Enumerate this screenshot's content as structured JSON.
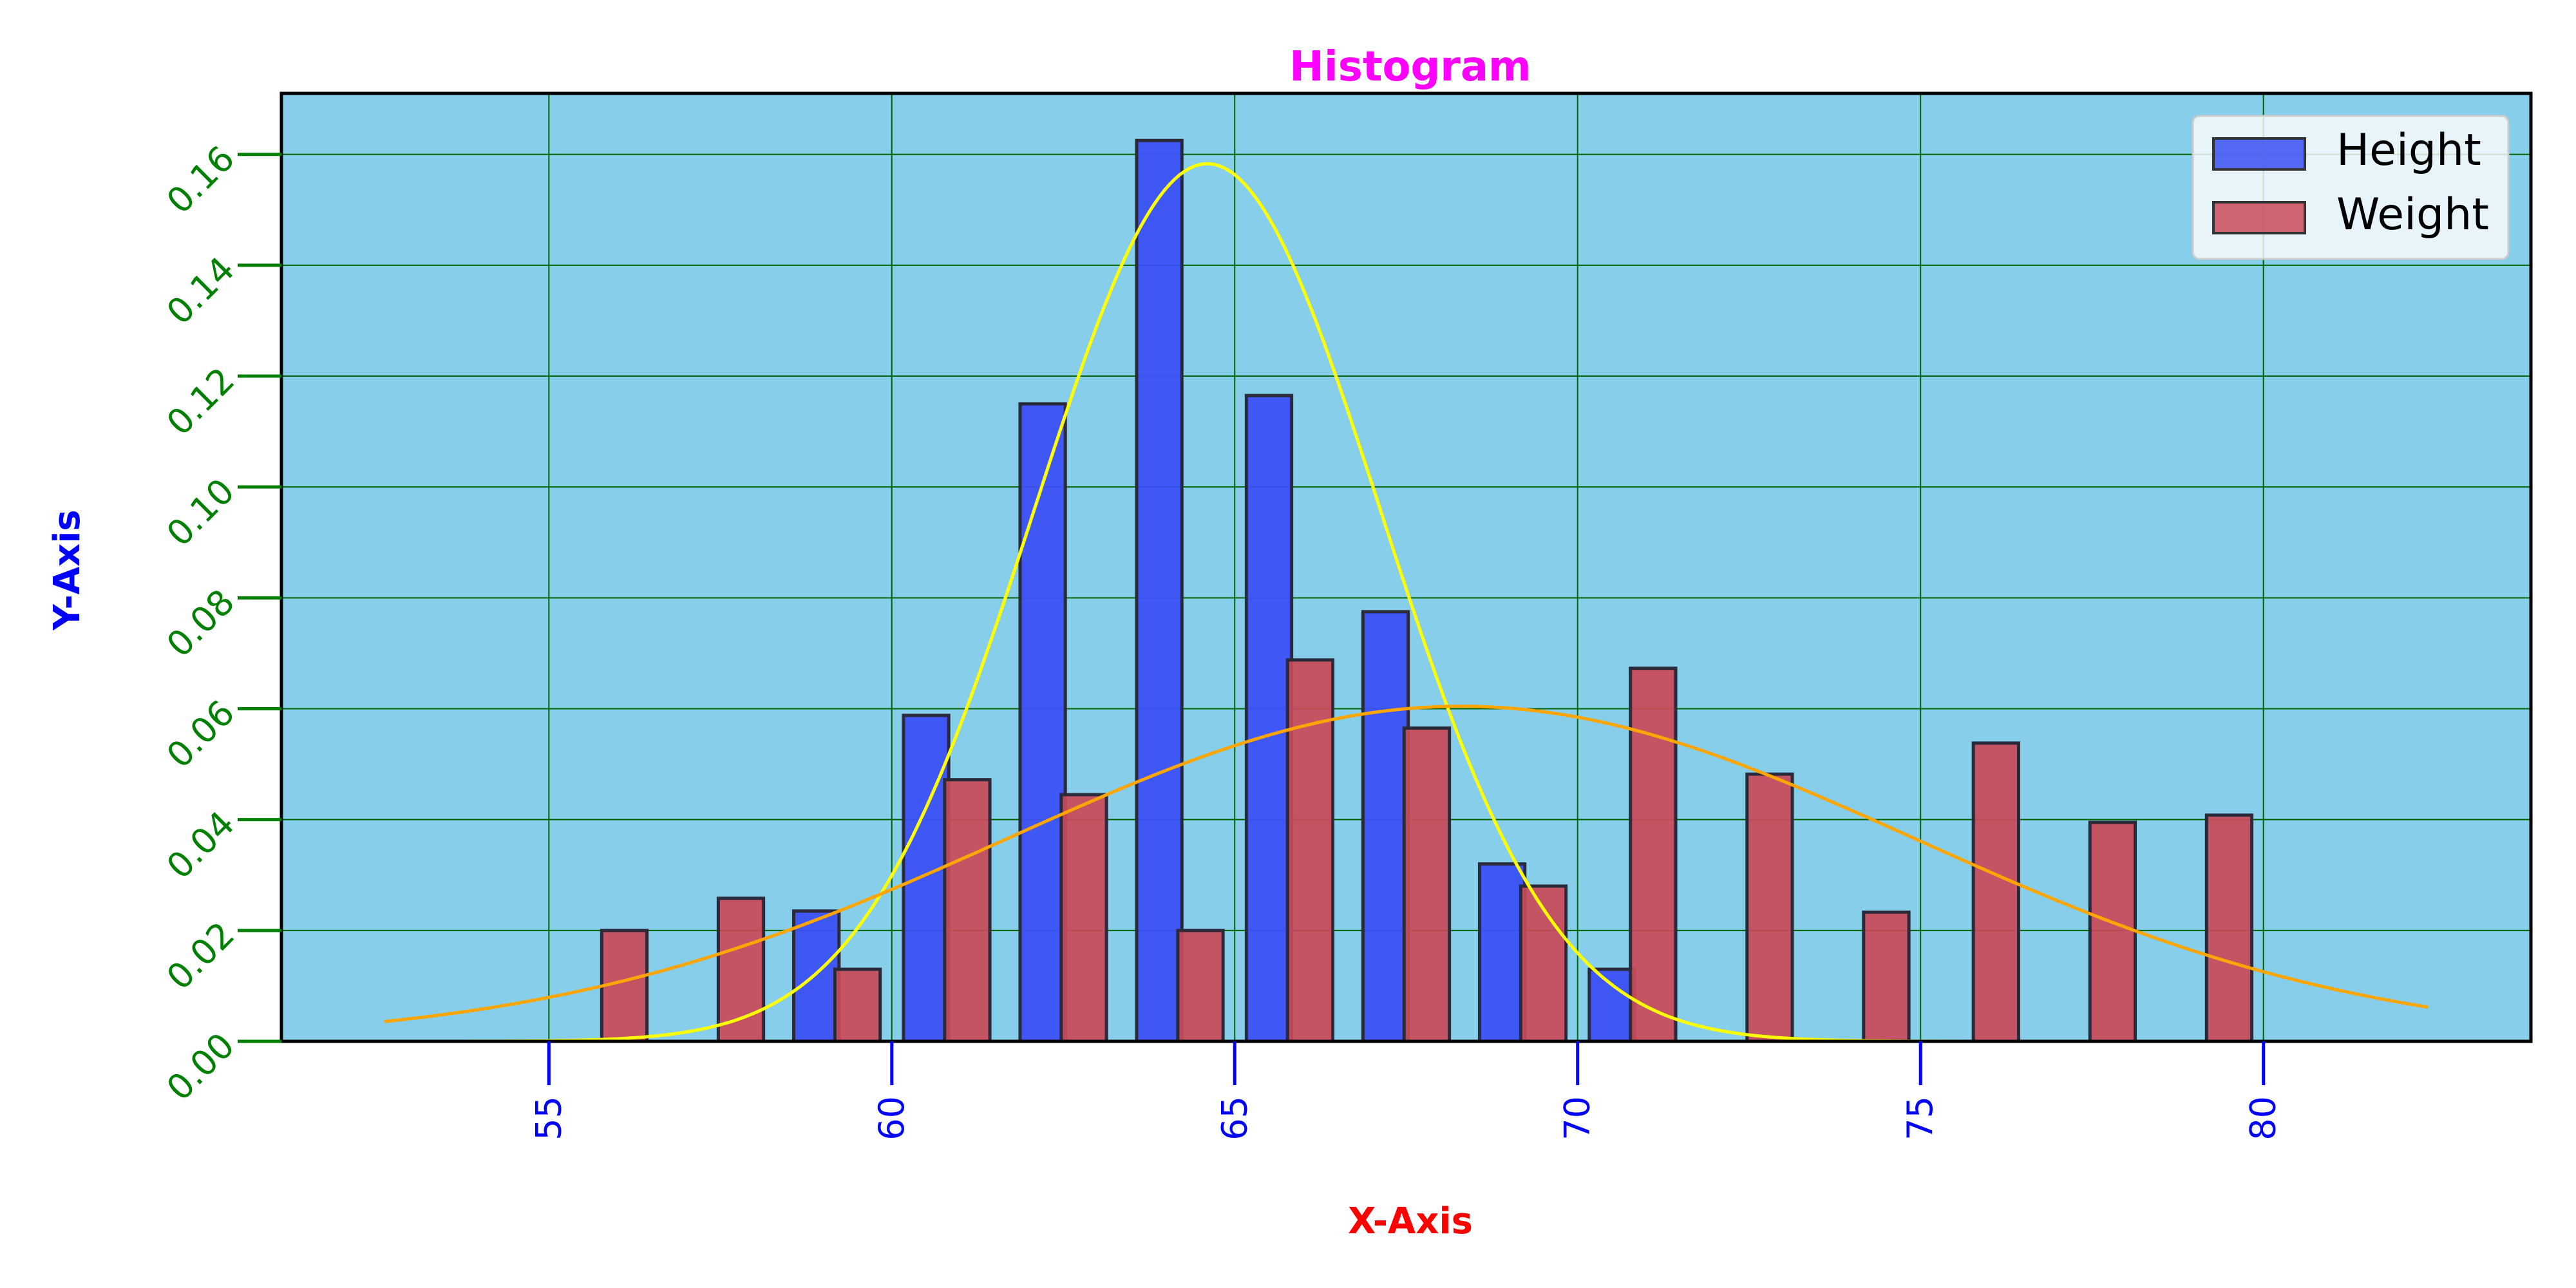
{
  "chart_data": {
    "type": "bar",
    "title": "Histogram",
    "xlabel": "X-Axis",
    "ylabel": "Y-Axis",
    "xlim": [
      51.1,
      83.9
    ],
    "ylim": [
      0,
      0.171
    ],
    "xticks": [
      "55",
      "60",
      "65",
      "70",
      "75",
      "80"
    ],
    "yticks": [
      "0.00",
      "0.02",
      "0.04",
      "0.06",
      "0.08",
      "0.10",
      "0.12",
      "0.14",
      "0.16"
    ],
    "grid": true,
    "legend_position": "top-right",
    "colors": {
      "title": "#ff00ff",
      "xlabel": "#ff0000",
      "ylabel": "#0000ff",
      "xtick": "#0000ff",
      "ytick": "#008000",
      "plot_background": "#87ceeb",
      "grid": "#006400",
      "height": "#3a50f5",
      "weight": "#c94a58",
      "height_fit": "#ffff00",
      "weight_fit": "#ffa500"
    },
    "series": [
      {
        "name": "Height",
        "bin_width": 0.66,
        "x": [
          58.9,
          60.5,
          62.2,
          63.9,
          65.5,
          67.2,
          68.9,
          70.5
        ],
        "values": [
          0.0235,
          0.0588,
          0.115,
          0.1625,
          0.1165,
          0.0775,
          0.032,
          0.013
        ]
      },
      {
        "name": "Weight",
        "bin_width": 0.66,
        "x": [
          56.1,
          57.8,
          59.5,
          61.1,
          62.8,
          64.5,
          66.1,
          67.8,
          69.5,
          71.1,
          72.8,
          74.5,
          76.1,
          77.8,
          79.5
        ],
        "values": [
          0.02,
          0.0258,
          0.013,
          0.0472,
          0.0445,
          0.02,
          0.0688,
          0.0565,
          0.028,
          0.0673,
          0.0482,
          0.0233,
          0.0538,
          0.0395,
          0.0408
        ]
      }
    ],
    "fits": [
      {
        "series": "Height",
        "mean": 64.6,
        "std": 2.52,
        "x_range": [
          53.8,
          75.6
        ]
      },
      {
        "series": "Weight",
        "mean": 68.3,
        "std": 6.6,
        "x_range": [
          52.6,
          82.4
        ]
      }
    ]
  }
}
